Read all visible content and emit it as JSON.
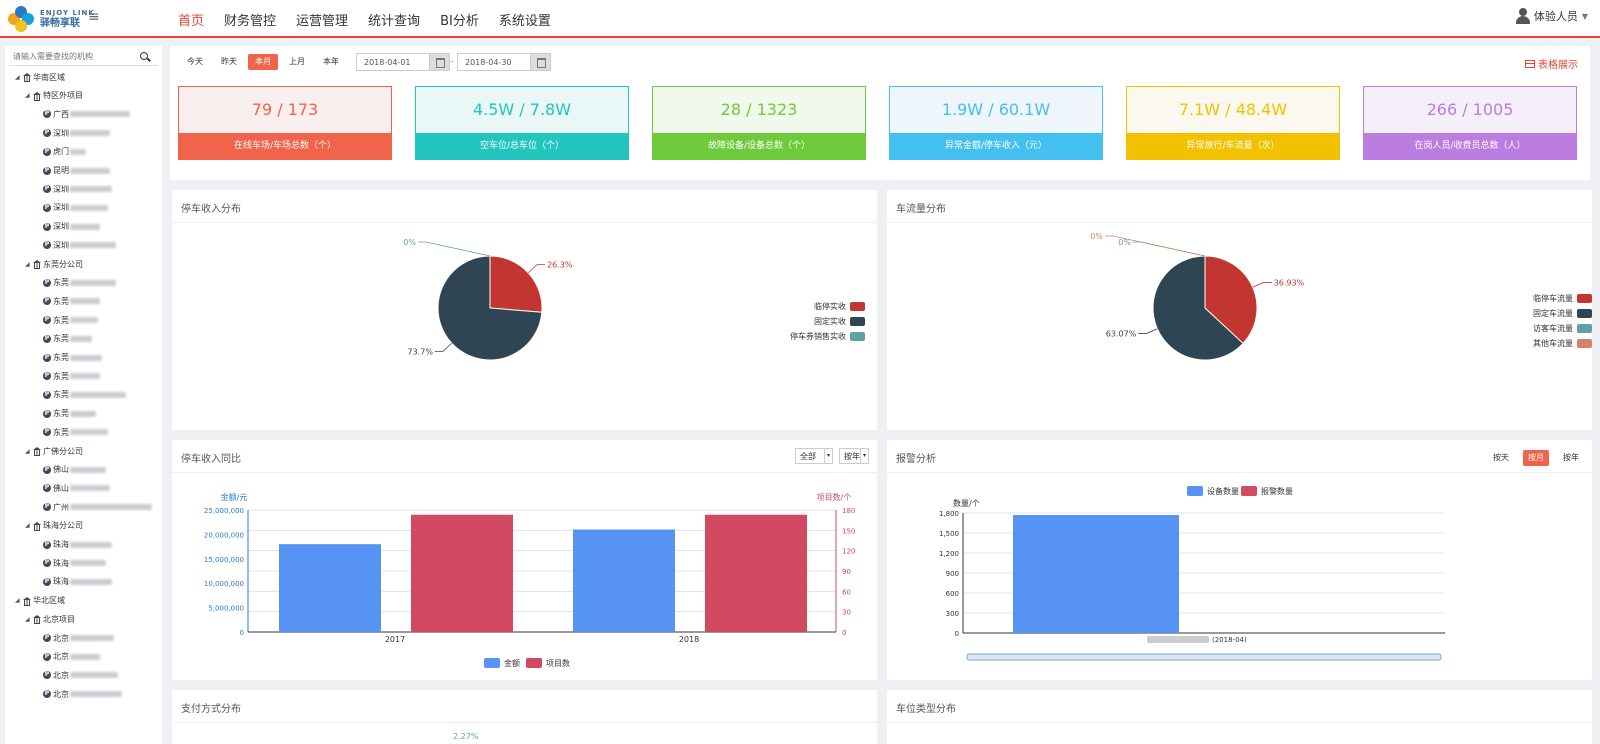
{
  "app": {
    "logo_en": "ENJOY LINK",
    "logo_cn": "驿畅享联",
    "nav": [
      "首页",
      "财务管控",
      "运营管理",
      "统计查询",
      "BI分析",
      "系统设置"
    ],
    "user": "体验人员"
  },
  "sidebar": {
    "search_placeholder": "请输入需要查找的机构",
    "tree": [
      {
        "label": "华南区域",
        "level": 0,
        "type": "group"
      },
      {
        "label": "特区外项目",
        "level": 1,
        "type": "group"
      },
      {
        "label": "广西",
        "level": 2,
        "type": "item",
        "blur": 60
      },
      {
        "label": "深圳",
        "level": 2,
        "type": "item",
        "blur": 40
      },
      {
        "label": "虎门",
        "level": 2,
        "type": "item",
        "blur": 16
      },
      {
        "label": "昆明",
        "level": 2,
        "type": "item",
        "blur": 40
      },
      {
        "label": "深圳",
        "level": 2,
        "type": "item",
        "blur": 42
      },
      {
        "label": "深圳",
        "level": 2,
        "type": "item",
        "blur": 38
      },
      {
        "label": "深圳",
        "level": 2,
        "type": "item",
        "blur": 30
      },
      {
        "label": "深圳",
        "level": 2,
        "type": "item",
        "blur": 46
      },
      {
        "label": "东莞分公司",
        "level": 1,
        "type": "group"
      },
      {
        "label": "东莞",
        "level": 2,
        "type": "item",
        "blur": 46
      },
      {
        "label": "东莞",
        "level": 2,
        "type": "item",
        "blur": 30
      },
      {
        "label": "东莞",
        "level": 2,
        "type": "item",
        "blur": 28
      },
      {
        "label": "东莞",
        "level": 2,
        "type": "item",
        "blur": 22
      },
      {
        "label": "东莞",
        "level": 2,
        "type": "item",
        "blur": 32
      },
      {
        "label": "东莞",
        "level": 2,
        "type": "item",
        "blur": 30
      },
      {
        "label": "东莞",
        "level": 2,
        "type": "item",
        "blur": 56
      },
      {
        "label": "东莞",
        "level": 2,
        "type": "item",
        "blur": 26
      },
      {
        "label": "东莞",
        "level": 2,
        "type": "item",
        "blur": 38
      },
      {
        "label": "广佛分公司",
        "level": 1,
        "type": "group"
      },
      {
        "label": "佛山",
        "level": 2,
        "type": "item",
        "blur": 36
      },
      {
        "label": "佛山",
        "level": 2,
        "type": "item",
        "blur": 40
      },
      {
        "label": "广州",
        "level": 2,
        "type": "item",
        "blur": 82
      },
      {
        "label": "珠海分公司",
        "level": 1,
        "type": "group"
      },
      {
        "label": "珠海",
        "level": 2,
        "type": "item",
        "blur": 42
      },
      {
        "label": "珠海",
        "level": 2,
        "type": "item",
        "blur": 36
      },
      {
        "label": "珠海",
        "level": 2,
        "type": "item",
        "blur": 42
      },
      {
        "label": "华北区域",
        "level": 0,
        "type": "group"
      },
      {
        "label": "北京项目",
        "level": 1,
        "type": "group"
      },
      {
        "label": "北京",
        "level": 2,
        "type": "item",
        "blur": 44
      },
      {
        "label": "北京",
        "level": 2,
        "type": "item",
        "blur": 30
      },
      {
        "label": "北京",
        "level": 2,
        "type": "item",
        "blur": 48
      },
      {
        "label": "北京",
        "level": 2,
        "type": "item",
        "blur": 52
      }
    ]
  },
  "filter": {
    "tabs": [
      "今天",
      "昨天",
      "本月",
      "上月",
      "本年"
    ],
    "active_tab": "本月",
    "start_date": "2018-04-01",
    "end_date": "2018-04-30",
    "separator": "-",
    "table_view": "表格展示"
  },
  "kpis": [
    {
      "value": "79 / 173",
      "label": "在线车场/车场总数（个）",
      "color": "#f2634b",
      "bg": "#f8efee"
    },
    {
      "value": "4.5W / 7.8W",
      "label": "空车位/总车位（个）",
      "color": "#22c6bf",
      "bg": "#e9f7f7"
    },
    {
      "value": "28 / 1323",
      "label": "故障设备/设备总数（个）",
      "color": "#6dcb3b",
      "bg": "#f1f8ec"
    },
    {
      "value": "1.9W / 60.1W",
      "label": "异常金额/停车收入（元）",
      "color": "#43c0ef",
      "bg": "#eef6fb"
    },
    {
      "value": "7.1W / 48.4W",
      "label": "异常放行/车流量（次）",
      "color": "#f2c200",
      "bg": "#fbf9ef"
    },
    {
      "value": "266 / 1005",
      "label": "在岗人员/收费员总数（人）",
      "color": "#bb7de0",
      "bg": "#f5eff9"
    }
  ],
  "income_pie": {
    "title": "停车收入分布",
    "chart_data": {
      "type": "pie",
      "slices": [
        {
          "name": "临停实收",
          "value": 26.3,
          "label": "26.3%",
          "color": "#c23531"
        },
        {
          "name": "固定实收",
          "value": 73.7,
          "label": "73.7%",
          "color": "#2f4554"
        },
        {
          "name": "停车券销售实收",
          "value": 0,
          "label": "0%",
          "color": "#61a0a8"
        }
      ]
    }
  },
  "traffic_pie": {
    "title": "车流量分布",
    "chart_data": {
      "type": "pie",
      "slices": [
        {
          "name": "临停车流量",
          "value": 36.93,
          "label": "36.93%",
          "color": "#c23531"
        },
        {
          "name": "固定车流量",
          "value": 63.07,
          "label": "63.07%",
          "color": "#2f4554"
        },
        {
          "name": "访客车流量",
          "value": 0,
          "label": "0%",
          "color": "#61a0a8"
        },
        {
          "name": "其他车流量",
          "value": 0,
          "label": "0%",
          "color": "#d48265"
        }
      ]
    }
  },
  "income_compare": {
    "title": "停车收入同比",
    "select_scope": "全部",
    "select_period": "按年",
    "chart_data": {
      "type": "bar",
      "categories": [
        "2017",
        "2018"
      ],
      "series": [
        {
          "name": "金额",
          "values": [
            18000000,
            21000000
          ],
          "color": "#5793f3",
          "axis": "left"
        },
        {
          "name": "项目数",
          "values": [
            173,
            173
          ],
          "color": "#d14a61",
          "axis": "right"
        }
      ],
      "ylabel_left": "金额/元",
      "ylabel_right": "项目数/个",
      "ylim_left": [
        0,
        25000000
      ],
      "ylim_right": [
        0,
        180
      ],
      "yticks_left": [
        "0",
        "5,000,000",
        "10,000,000",
        "15,000,000",
        "20,000,000",
        "25,000,000"
      ],
      "yticks_right": [
        "0",
        "30",
        "60",
        "90",
        "120",
        "150",
        "180"
      ]
    }
  },
  "alarm": {
    "title": "报警分析",
    "toggles": [
      "按天",
      "按月",
      "按年"
    ],
    "active_toggle": "按月",
    "chart_data": {
      "type": "bar",
      "categories": [
        "(2018-04)"
      ],
      "series": [
        {
          "name": "设备数量",
          "values": [
            1770
          ],
          "color": "#5793f3"
        },
        {
          "name": "报警数量",
          "values": [
            0
          ],
          "color": "#d14a61"
        }
      ],
      "ylabel": "数量/个",
      "ylim": [
        0,
        1800
      ],
      "yticks": [
        "0",
        "300",
        "600",
        "900",
        "1,200",
        "1,500",
        "1,800"
      ]
    }
  },
  "payment": {
    "title": "支付方式分布",
    "peek_label": "2.27%"
  },
  "space_type": {
    "title": "车位类型分布"
  }
}
